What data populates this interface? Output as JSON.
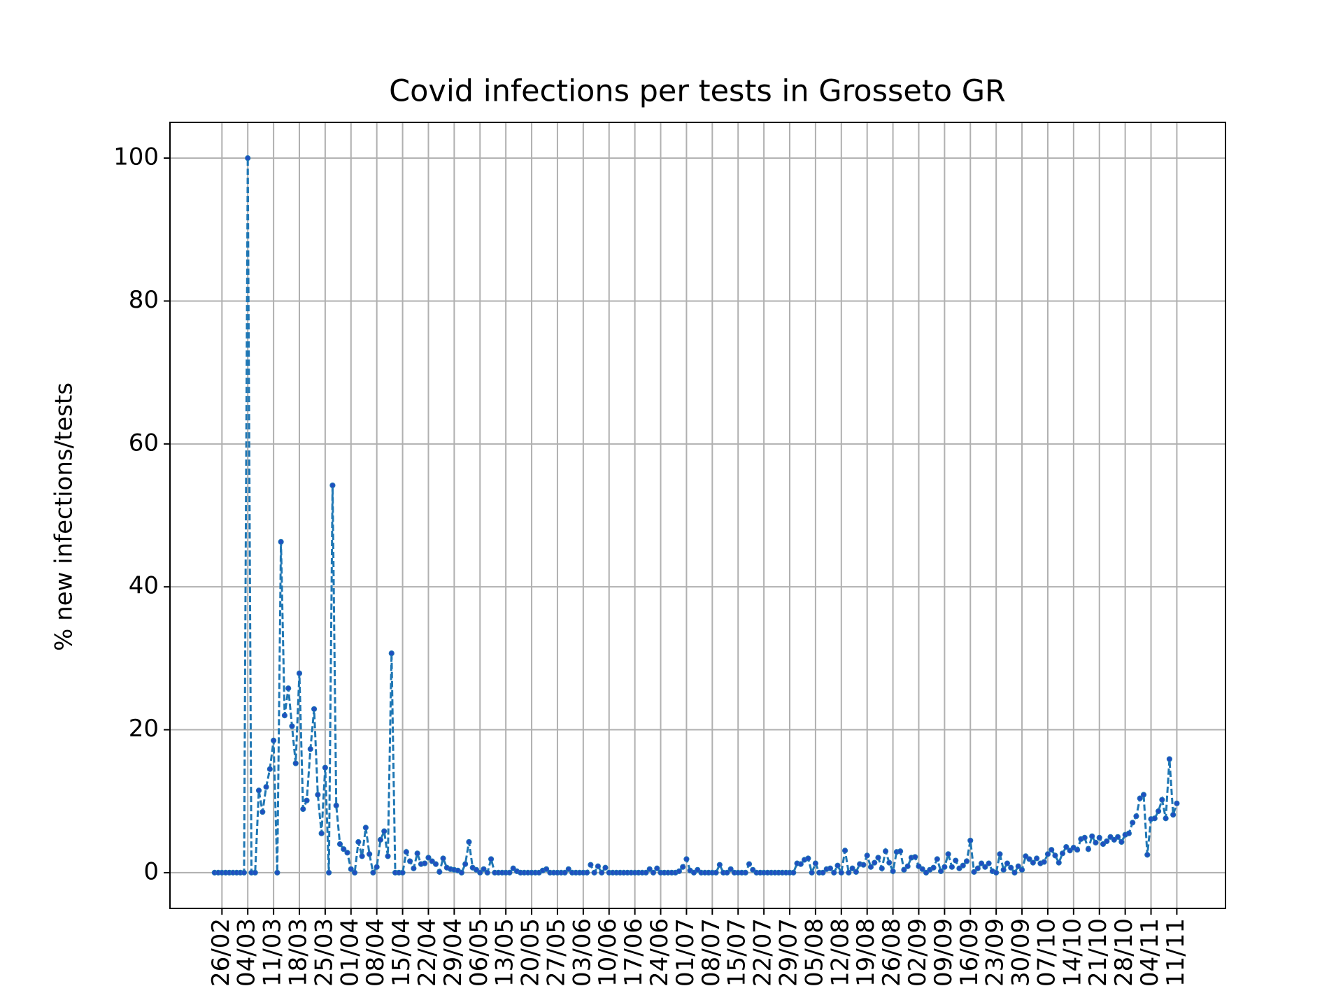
{
  "chart_data": {
    "type": "line",
    "title": "Covid infections per tests in Grosseto GR",
    "y_label": "% new infections/tests",
    "color": "#1f77b4",
    "marker_color": "#1f4fc0",
    "line_style": "dashed",
    "grid": true,
    "ylim": [
      -5,
      105
    ],
    "yticks": [
      0,
      20,
      40,
      60,
      80,
      100
    ],
    "xticks": [
      "26/02",
      "04/03",
      "11/03",
      "18/03",
      "25/03",
      "01/04",
      "08/04",
      "15/04",
      "22/04",
      "29/04",
      "06/05",
      "13/05",
      "20/05",
      "27/05",
      "03/06",
      "10/06",
      "17/06",
      "24/06",
      "01/07",
      "08/07",
      "15/07",
      "22/07",
      "29/07",
      "05/08",
      "12/08",
      "19/08",
      "26/08",
      "02/09",
      "09/09",
      "16/09",
      "23/09",
      "30/09",
      "07/10",
      "14/10",
      "21/10",
      "28/10",
      "04/11",
      "11/11"
    ],
    "x": [
      "24/02",
      "25/02",
      "26/02",
      "27/02",
      "28/02",
      "29/02",
      "01/03",
      "02/03",
      "03/03",
      "04/03",
      "05/03",
      "06/03",
      "07/03",
      "08/03",
      "09/03",
      "10/03",
      "11/03",
      "12/03",
      "13/03",
      "14/03",
      "15/03",
      "16/03",
      "17/03",
      "18/03",
      "19/03",
      "20/03",
      "21/03",
      "22/03",
      "23/03",
      "24/03",
      "25/03",
      "26/03",
      "27/03",
      "28/03",
      "29/03",
      "30/03",
      "31/03",
      "01/04",
      "02/04",
      "03/04",
      "04/04",
      "05/04",
      "06/04",
      "07/04",
      "08/04",
      "09/04",
      "10/04",
      "11/04",
      "12/04",
      "13/04",
      "14/04",
      "15/04",
      "16/04",
      "17/04",
      "18/04",
      "19/04",
      "20/04",
      "21/04",
      "22/04",
      "23/04",
      "24/04",
      "25/04",
      "26/04",
      "27/04",
      "28/04",
      "29/04",
      "30/04",
      "01/05",
      "02/05",
      "03/05",
      "04/05",
      "05/05",
      "06/05",
      "07/05",
      "08/05",
      "09/05",
      "10/05",
      "11/05",
      "12/05",
      "13/05",
      "14/05",
      "15/05",
      "16/05",
      "17/05",
      "18/05",
      "19/05",
      "20/05",
      "21/05",
      "22/05",
      "23/05",
      "24/05",
      "25/05",
      "26/05",
      "27/05",
      "28/05",
      "29/05",
      "30/05",
      "31/05",
      "01/06",
      "02/06",
      "03/06",
      "04/06",
      "05/06",
      "06/06",
      "07/06",
      "08/06",
      "09/06",
      "10/06",
      "11/06",
      "12/06",
      "13/06",
      "14/06",
      "15/06",
      "16/06",
      "17/06",
      "18/06",
      "19/06",
      "20/06",
      "21/06",
      "22/06",
      "23/06",
      "24/06",
      "25/06",
      "26/06",
      "27/06",
      "28/06",
      "29/06",
      "30/06",
      "01/07",
      "02/07",
      "03/07",
      "04/07",
      "05/07",
      "06/07",
      "07/07",
      "08/07",
      "09/07",
      "10/07",
      "11/07",
      "12/07",
      "13/07",
      "14/07",
      "15/07",
      "16/07",
      "17/07",
      "18/07",
      "19/07",
      "20/07",
      "21/07",
      "22/07",
      "23/07",
      "24/07",
      "25/07",
      "26/07",
      "27/07",
      "28/07",
      "29/07",
      "30/07",
      "31/07",
      "01/08",
      "02/08",
      "03/08",
      "04/08",
      "05/08",
      "06/08",
      "07/08",
      "08/08",
      "09/08",
      "10/08",
      "11/08",
      "12/08",
      "13/08",
      "14/08",
      "15/08",
      "16/08",
      "17/08",
      "18/08",
      "19/08",
      "20/08",
      "21/08",
      "22/08",
      "23/08",
      "24/08",
      "25/08",
      "26/08",
      "27/08",
      "28/08",
      "29/08",
      "30/08",
      "31/08",
      "01/09",
      "02/09",
      "03/09",
      "04/09",
      "05/09",
      "06/09",
      "07/09",
      "08/09",
      "09/09",
      "10/09",
      "11/09",
      "12/09",
      "13/09",
      "14/09",
      "15/09",
      "16/09",
      "17/09",
      "18/09",
      "19/09",
      "20/09",
      "21/09",
      "22/09",
      "23/09",
      "24/09",
      "25/09",
      "26/09",
      "27/09",
      "28/09",
      "29/09",
      "30/09",
      "01/10",
      "02/10",
      "03/10",
      "04/10",
      "05/10",
      "06/10",
      "07/10",
      "08/10",
      "09/10",
      "10/10",
      "11/10",
      "12/10",
      "13/10",
      "14/10",
      "15/10",
      "16/10",
      "17/10",
      "18/10",
      "19/10",
      "20/10",
      "21/10",
      "22/10",
      "23/10",
      "24/10",
      "25/10",
      "26/10",
      "27/10",
      "28/10",
      "29/10",
      "30/10",
      "31/10",
      "01/11",
      "02/11",
      "03/11",
      "04/11",
      "05/11",
      "06/11",
      "07/11",
      "08/11",
      "09/11",
      "10/11",
      "11/11"
    ],
    "values": [
      0,
      0,
      0,
      0,
      0,
      0,
      0,
      0,
      0,
      100,
      0,
      0,
      11.5,
      8.5,
      12,
      14.5,
      18.5,
      0,
      46.3,
      22,
      25.8,
      20.5,
      15.3,
      27.9,
      8.9,
      10.1,
      17.3,
      22.9,
      10.9,
      5.5,
      14.7,
      0,
      54.2,
      9.4,
      4,
      3.3,
      2.8,
      0.5,
      0,
      4.3,
      2.3,
      6.3,
      2.6,
      0,
      0.8,
      4.6,
      5.8,
      2.3,
      30.7,
      0,
      0,
      0,
      2.9,
      1.6,
      0.6,
      2.7,
      1.2,
      1.3,
      2.1,
      1.6,
      1.2,
      0.1,
      2.0,
      0.7,
      0.5,
      0.4,
      0.3,
      0,
      1.2,
      4.3,
      0.7,
      0.4,
      0,
      0.5,
      0,
      1.9,
      0,
      0,
      0,
      0,
      0,
      0.6,
      0.2,
      0,
      0,
      0,
      0,
      0,
      0,
      0.3,
      0.5,
      0,
      0,
      0,
      0,
      0,
      0.5,
      0,
      0,
      0,
      0,
      0,
      1.1,
      0,
      0.9,
      0,
      0.7,
      0,
      0,
      0,
      0,
      0,
      0,
      0,
      0,
      0,
      0,
      0,
      0.5,
      0,
      0.6,
      0,
      0,
      0,
      0,
      0,
      0.2,
      0.8,
      1.9,
      0.3,
      0,
      0.4,
      0,
      0,
      0,
      0,
      0,
      1.1,
      0,
      0,
      0.5,
      0,
      0,
      0,
      0,
      1.2,
      0.4,
      0,
      0,
      0,
      0,
      0,
      0,
      0,
      0,
      0,
      0,
      0,
      1.3,
      1.2,
      1.8,
      2.0,
      0,
      1.3,
      0,
      0,
      0.5,
      0.6,
      0,
      1.0,
      0,
      3.1,
      0,
      0.6,
      0.1,
      1.2,
      1.1,
      2.4,
      0.8,
      1.4,
      2.1,
      0.6,
      3.0,
      1.4,
      0.2,
      2.9,
      3.0,
      0.4,
      0.9,
      2.1,
      2.2,
      0.9,
      0.5,
      0,
      0.4,
      0.7,
      1.9,
      0.2,
      0.8,
      2.6,
      0.8,
      1.7,
      0.6,
      1.0,
      1.6,
      4.5,
      0.1,
      0.6,
      1.3,
      0.8,
      1.3,
      0.2,
      0,
      2.6,
      0.4,
      1.3,
      0.7,
      0,
      0.9,
      0.4,
      2.3,
      1.9,
      1.4,
      2.0,
      1.3,
      1.5,
      2.6,
      3.2,
      2.4,
      1.4,
      2.7,
      3.6,
      3.1,
      3.5,
      3.2,
      4.7,
      4.9,
      3.3,
      5.1,
      4.2,
      4.9,
      4.0,
      4.4,
      5.0,
      4.6,
      5.0,
      4.3,
      5.3,
      5.5,
      7.0,
      7.9,
      10.4,
      10.9,
      2.5,
      7.5,
      7.6,
      8.6,
      10.2,
      7.6,
      15.9,
      8.1,
      9.7
    ]
  }
}
